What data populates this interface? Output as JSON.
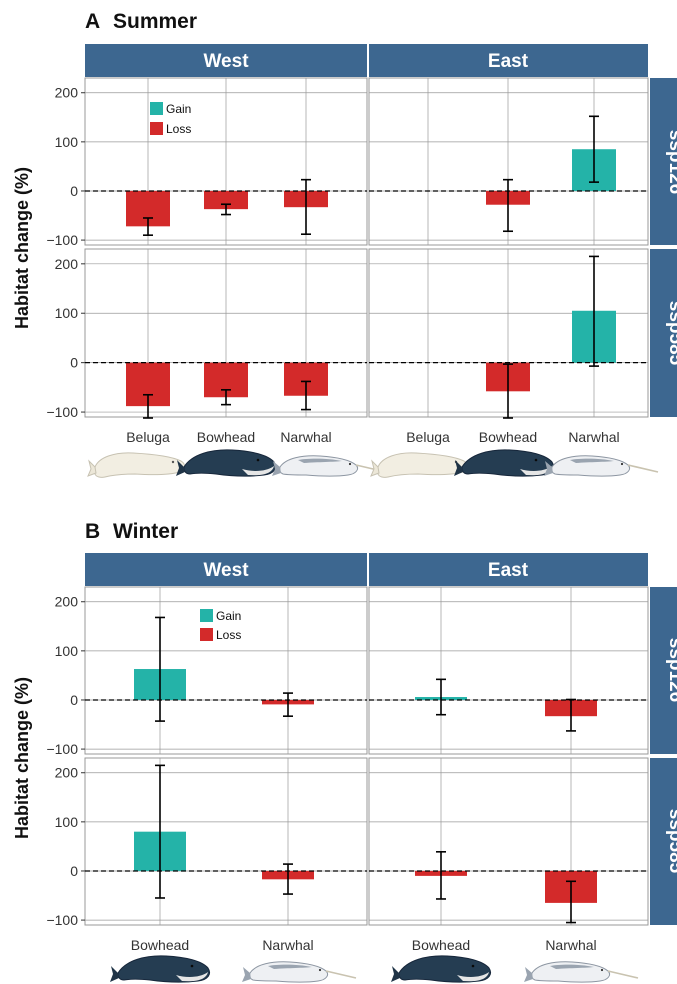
{
  "colors": {
    "gain": "#24b3a8",
    "loss": "#d32a2a",
    "strip": "#3d6790",
    "panel_border": "#999999",
    "grid": "#999999"
  },
  "icons": [
    "beluga-whale-illustration",
    "bowhead-whale-illustration",
    "narwhal-illustration"
  ],
  "chart_data": [
    {
      "type": "bar",
      "label": "A",
      "title": "Summer",
      "ylabel": "Habitat change (%)",
      "ylim": [
        -110,
        230
      ],
      "yticks": [
        -100,
        0,
        100,
        200
      ],
      "columns": [
        "West",
        "East"
      ],
      "rows": [
        "ssp126",
        "ssp585"
      ],
      "categories": [
        "Beluga",
        "Bowhead",
        "Narwhal"
      ],
      "legend": [
        "Gain",
        "Loss"
      ],
      "panels": [
        {
          "column": "West",
          "row": "ssp126",
          "bars": [
            {
              "category": "Beluga",
              "value": -72,
              "err_low": -90,
              "err_high": -55
            },
            {
              "category": "Bowhead",
              "value": -37,
              "err_low": -48,
              "err_high": -27
            },
            {
              "category": "Narwhal",
              "value": -33,
              "err_low": -88,
              "err_high": 23
            }
          ]
        },
        {
          "column": "East",
          "row": "ssp126",
          "bars": [
            {
              "category": "Bowhead",
              "value": -28,
              "err_low": -82,
              "err_high": 23
            },
            {
              "category": "Narwhal",
              "value": 85,
              "err_low": 18,
              "err_high": 152
            }
          ]
        },
        {
          "column": "West",
          "row": "ssp585",
          "bars": [
            {
              "category": "Beluga",
              "value": -88,
              "err_low": -112,
              "err_high": -65
            },
            {
              "category": "Bowhead",
              "value": -70,
              "err_low": -85,
              "err_high": -55
            },
            {
              "category": "Narwhal",
              "value": -67,
              "err_low": -95,
              "err_high": -38
            }
          ]
        },
        {
          "column": "East",
          "row": "ssp585",
          "bars": [
            {
              "category": "Bowhead",
              "value": -58,
              "err_low": -112,
              "err_high": -3
            },
            {
              "category": "Narwhal",
              "value": 105,
              "err_low": -7,
              "err_high": 215
            }
          ]
        }
      ]
    },
    {
      "type": "bar",
      "label": "B",
      "title": "Winter",
      "ylabel": "Habitat change (%)",
      "ylim": [
        -110,
        230
      ],
      "yticks": [
        -100,
        0,
        100,
        200
      ],
      "columns": [
        "West",
        "East"
      ],
      "rows": [
        "ssp126",
        "ssp585"
      ],
      "categories": [
        "Bowhead",
        "Narwhal"
      ],
      "legend": [
        "Gain",
        "Loss"
      ],
      "panels": [
        {
          "column": "West",
          "row": "ssp126",
          "bars": [
            {
              "category": "Bowhead",
              "value": 63,
              "err_low": -43,
              "err_high": 168
            },
            {
              "category": "Narwhal",
              "value": -9,
              "err_low": -33,
              "err_high": 14
            }
          ]
        },
        {
          "column": "East",
          "row": "ssp126",
          "bars": [
            {
              "category": "Bowhead",
              "value": 6,
              "err_low": -30,
              "err_high": 42
            },
            {
              "category": "Narwhal",
              "value": -33,
              "err_low": -63,
              "err_high": 1
            }
          ]
        },
        {
          "column": "West",
          "row": "ssp585",
          "bars": [
            {
              "category": "Bowhead",
              "value": 80,
              "err_low": -55,
              "err_high": 215
            },
            {
              "category": "Narwhal",
              "value": -17,
              "err_low": -47,
              "err_high": 14
            }
          ]
        },
        {
          "column": "East",
          "row": "ssp585",
          "bars": [
            {
              "category": "Bowhead",
              "value": -10,
              "err_low": -57,
              "err_high": 39
            },
            {
              "category": "Narwhal",
              "value": -65,
              "err_low": -105,
              "err_high": -21
            }
          ]
        }
      ]
    }
  ]
}
